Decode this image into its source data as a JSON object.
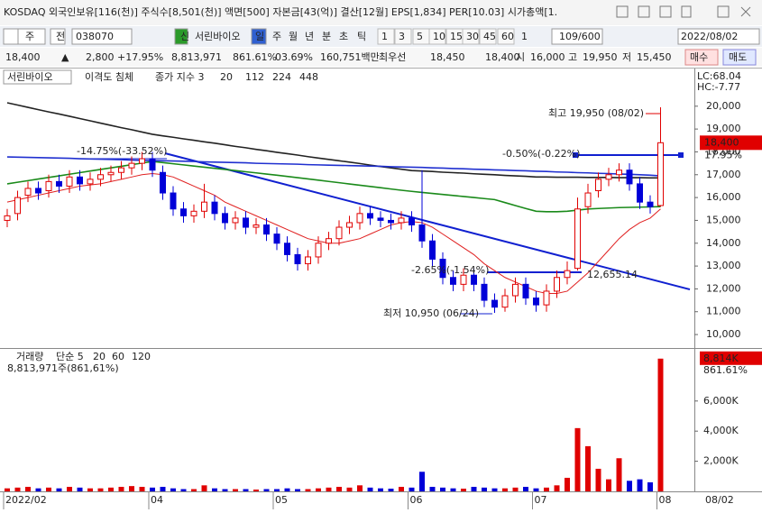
{
  "ui": {
    "title": "KOSDAQ 외국인보유[116(천)] 주식수[8,501(천)] 액면[500] 자본금[43(억)] 결산[12월] EPS[1,834] PER[10.03] 시가총액[1.",
    "toolbar": [
      "주",
      "전",
      "038070",
      "신",
      "서린바이오",
      "일",
      "주",
      "월",
      "년",
      "분",
      "초",
      "틱",
      "1",
      "3",
      "5",
      "10",
      "15",
      "30",
      "45",
      "60",
      "1",
      "109/600",
      "2022/08/02"
    ],
    "quote": [
      "18,400",
      "▲",
      "2,800",
      "+17.95%",
      "8,813,971",
      "861.61%",
      "03.69%",
      "160,751백만",
      "최우선",
      "18,450",
      "18,400",
      "시",
      "16,000",
      "고",
      "19,950",
      "저",
      "15,450",
      "매수",
      "매도"
    ]
  },
  "chart_data": {
    "type": "candlestick",
    "stock_name": "서린바이오",
    "indicator_label": "이격도 침체",
    "ma_label": "종가 지수 3",
    "lc_label": "LC:68.04",
    "hc_label": "HC:-7.77",
    "last_price_label": "18,400",
    "last_change_label": "17.95%",
    "right_date_label": "08/02",
    "categories": [
      "2022/02",
      null,
      null,
      null,
      null,
      null,
      null,
      null,
      null,
      null,
      null,
      null,
      null,
      null,
      "04",
      null,
      null,
      null,
      null,
      null,
      null,
      null,
      null,
      null,
      null,
      null,
      "05",
      null,
      null,
      null,
      null,
      null,
      null,
      null,
      null,
      null,
      null,
      null,
      null,
      "06",
      null,
      null,
      null,
      null,
      null,
      null,
      null,
      null,
      null,
      null,
      null,
      "07",
      null,
      null,
      null,
      null,
      null,
      null,
      null,
      null,
      null,
      null,
      null,
      "08"
    ],
    "open": [
      15000,
      15300,
      16100,
      16400,
      16300,
      16700,
      16500,
      16900,
      16600,
      16800,
      17000,
      17100,
      17300,
      17500,
      17700,
      17100,
      16200,
      15500,
      15200,
      15400,
      15800,
      15300,
      14900,
      15100,
      14700,
      14800,
      14400,
      14000,
      13500,
      13100,
      13400,
      14000,
      14200,
      14700,
      14900,
      15300,
      15100,
      15000,
      14900,
      15100,
      14800,
      14100,
      13300,
      12500,
      12200,
      12600,
      12200,
      11500,
      11200,
      11700,
      12200,
      11600,
      11300,
      11900,
      12500,
      12900,
      15600,
      16300,
      16800,
      17000,
      17200,
      16600,
      15800,
      15650
    ],
    "high": [
      15500,
      16300,
      16700,
      16700,
      17000,
      17000,
      17200,
      17200,
      17100,
      17300,
      17400,
      17600,
      17800,
      18000,
      18000,
      17400,
      16500,
      15800,
      15700,
      16600,
      16100,
      15600,
      15400,
      15400,
      15100,
      15100,
      14700,
      14300,
      13800,
      13700,
      14300,
      14500,
      15000,
      15200,
      15600,
      15600,
      15400,
      15300,
      15400,
      15400,
      17200,
      14400,
      13600,
      12800,
      12900,
      12900,
      12500,
      11800,
      12000,
      12500,
      12500,
      11900,
      12200,
      12800,
      13200,
      16000,
      16600,
      17100,
      17300,
      17500,
      17500,
      16900,
      16100,
      19950
    ],
    "low": [
      14700,
      15000,
      15800,
      15900,
      16000,
      16200,
      16200,
      16300,
      16300,
      16500,
      16700,
      16800,
      17000,
      17200,
      16900,
      15900,
      15200,
      14900,
      14900,
      15100,
      15000,
      14600,
      14600,
      14400,
      14400,
      14100,
      13700,
      13200,
      12800,
      12800,
      13100,
      13700,
      13900,
      14400,
      14600,
      14800,
      14700,
      14600,
      14600,
      14500,
      13800,
      13000,
      12200,
      11900,
      11900,
      11900,
      11200,
      10950,
      11000,
      11400,
      11300,
      11000,
      11000,
      11600,
      12200,
      12800,
      15300,
      16000,
      16500,
      16700,
      16300,
      15500,
      15300,
      15600
    ],
    "close": [
      15200,
      16000,
      16400,
      16200,
      16700,
      16500,
      16900,
      16600,
      16800,
      17000,
      17100,
      17300,
      17500,
      17700,
      17200,
      16200,
      15500,
      15200,
      15400,
      15800,
      15300,
      14900,
      15100,
      14700,
      14800,
      14400,
      14000,
      13500,
      13100,
      13400,
      14000,
      14200,
      14700,
      14900,
      15300,
      15100,
      15000,
      14900,
      15100,
      14800,
      14100,
      13300,
      12500,
      12200,
      12600,
      12200,
      11500,
      11200,
      11700,
      12200,
      11600,
      11300,
      11900,
      12500,
      12800,
      15500,
      16200,
      16800,
      17000,
      17200,
      16600,
      15800,
      15600,
      18400
    ],
    "up_color": "#e00000",
    "down_color": "#0000d8",
    "series": [
      {
        "name": "20",
        "color": "#e02020",
        "values": [
          15800,
          15900,
          16000,
          16100,
          16200,
          16300,
          16400,
          16500,
          16550,
          16600,
          16700,
          16800,
          16900,
          17000,
          17050,
          17000,
          16900,
          16700,
          16500,
          16300,
          16100,
          15800,
          15600,
          15400,
          15200,
          15000,
          14800,
          14600,
          14400,
          14200,
          14100,
          14000,
          14000,
          14100,
          14200,
          14400,
          14600,
          14800,
          14900,
          14950,
          14900,
          14700,
          14400,
          14100,
          13800,
          13500,
          13100,
          12800,
          12500,
          12300,
          12100,
          11900,
          11800,
          11800,
          11900,
          12300,
          12700,
          13200,
          13700,
          14200,
          14600,
          14900,
          15100,
          15500
        ]
      },
      {
        "name": "112",
        "color": "#1a8a1a",
        "values": [
          16600,
          16670,
          16740,
          16810,
          16880,
          16950,
          17020,
          17090,
          17160,
          17230,
          17300,
          17370,
          17440,
          17510,
          17580,
          17530,
          17480,
          17430,
          17380,
          17330,
          17280,
          17230,
          17180,
          17130,
          17080,
          17030,
          16980,
          16925,
          16870,
          16815,
          16760,
          16705,
          16650,
          16595,
          16540,
          16485,
          16430,
          16375,
          16320,
          16270,
          16225,
          16180,
          16135,
          16090,
          16045,
          16000,
          15955,
          15910,
          15780,
          15650,
          15520,
          15400,
          15380,
          15380,
          15400,
          15450,
          15500,
          15520,
          15540,
          15560,
          15570,
          15580,
          15590,
          15600
        ]
      },
      {
        "name": "224",
        "color": "#222222",
        "values": [
          20150,
          20050,
          19950,
          19850,
          19750,
          19660,
          19560,
          19460,
          19360,
          19260,
          19160,
          19060,
          18970,
          18870,
          18770,
          18700,
          18640,
          18570,
          18510,
          18440,
          18380,
          18310,
          18240,
          18180,
          18110,
          18050,
          17980,
          17920,
          17860,
          17790,
          17730,
          17670,
          17610,
          17550,
          17490,
          17420,
          17360,
          17300,
          17240,
          17180,
          17160,
          17140,
          17110,
          17090,
          17070,
          17040,
          17020,
          17000,
          16970,
          16950,
          16930,
          16900,
          16900,
          16890,
          16890,
          16890,
          16880,
          16880,
          16880,
          16870,
          16870,
          16870,
          16860,
          16860
        ]
      },
      {
        "name": "448",
        "color": "#2030d0",
        "values": [
          17780,
          17770,
          17760,
          17750,
          17740,
          17730,
          17720,
          17700,
          17690,
          17680,
          17670,
          17660,
          17640,
          17630,
          17620,
          17610,
          17600,
          17590,
          17580,
          17560,
          17550,
          17540,
          17530,
          17520,
          17500,
          17490,
          17480,
          17470,
          17460,
          17440,
          17430,
          17420,
          17410,
          17400,
          17390,
          17380,
          17370,
          17350,
          17340,
          17330,
          17320,
          17300,
          17290,
          17270,
          17260,
          17240,
          17230,
          17210,
          17200,
          17180,
          17170,
          17150,
          17140,
          17120,
          17110,
          17090,
          17080,
          17060,
          17050,
          17030,
          17020,
          17000,
          16980,
          16950
        ]
      }
    ],
    "ylim": [
      9450,
      20900
    ],
    "yticks": [
      {
        "value": 10000,
        "label": "10,000"
      },
      {
        "value": 11000,
        "label": "11,000"
      },
      {
        "value": 12000,
        "label": "12,000"
      },
      {
        "value": 13000,
        "label": "13,000"
      },
      {
        "value": 14000,
        "label": "14,000"
      },
      {
        "value": 15000,
        "label": "15,000"
      },
      {
        "value": 16000,
        "label": "16,000"
      },
      {
        "value": 17000,
        "label": "17,000"
      },
      {
        "value": 18000,
        "label": "18,000"
      },
      {
        "value": 19000,
        "label": "19,000"
      },
      {
        "value": 20000,
        "label": "20,000"
      }
    ],
    "annotations": [
      "최고 19,950 (08/02)",
      "-0.50%(-0.22%)",
      "-14.75%(-33.52%)",
      "-2.65%(-1.54%)",
      "12,655.14",
      "최저 10,950 (06/24)"
    ],
    "volume": {
      "name": "거래량",
      "ma_names": [
        "단순 5",
        "20",
        "60",
        "120"
      ],
      "readout": "8,813,971주(861,61%)",
      "last_label": "8,814K",
      "ratio_label": "861.61%",
      "values": [
        200,
        250,
        300,
        200,
        250,
        200,
        300,
        250,
        200,
        200,
        250,
        300,
        350,
        300,
        250,
        300,
        200,
        150,
        150,
        400,
        200,
        150,
        150,
        150,
        120,
        150,
        150,
        200,
        150,
        150,
        200,
        250,
        300,
        250,
        400,
        250,
        200,
        180,
        300,
        250,
        1300,
        300,
        250,
        200,
        180,
        300,
        250,
        200,
        200,
        250,
        300,
        200,
        250,
        400,
        900,
        4200,
        3000,
        1500,
        800,
        2200,
        700,
        800,
        600,
        8814
      ],
      "ylim": [
        0,
        9400
      ],
      "yticks": [
        {
          "value": 2000,
          "label": "2,000K"
        },
        {
          "value": 4000,
          "label": "4,000K"
        },
        {
          "value": 6000,
          "label": "6,000K"
        }
      ]
    }
  }
}
